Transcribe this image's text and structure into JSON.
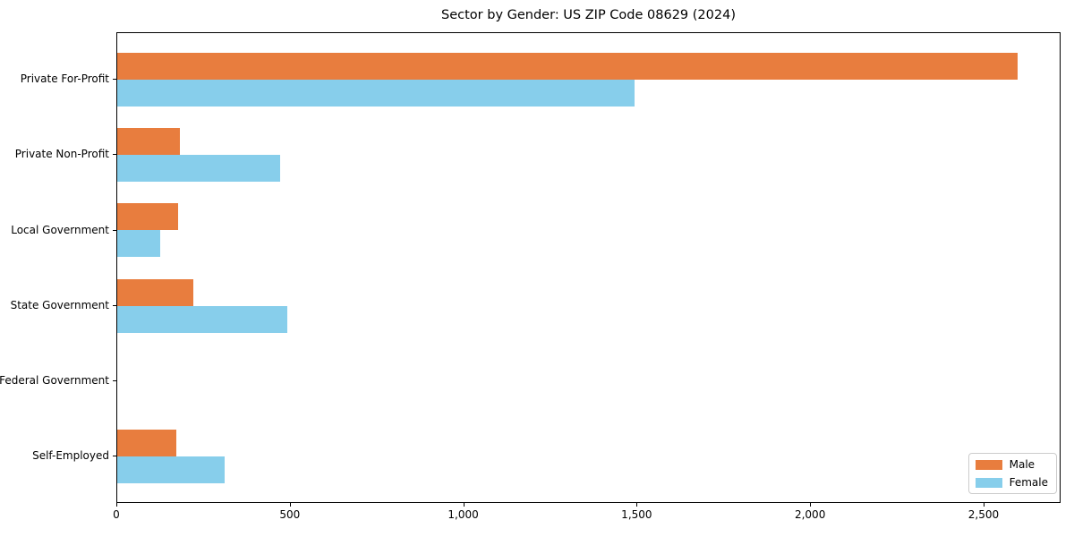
{
  "chart_data": {
    "type": "bar",
    "orientation": "horizontal",
    "title": "Sector by Gender: US ZIP Code 08629 (2024)",
    "categories": [
      "Private For-Profit",
      "Private Non-Profit",
      "Local Government",
      "State Government",
      "Federal Government",
      "Self-Employed"
    ],
    "series": [
      {
        "name": "Male",
        "color": "#e87d3e",
        "values": [
          2600,
          180,
          175,
          220,
          0,
          170
        ]
      },
      {
        "name": "Female",
        "color": "#87ceeb",
        "values": [
          1495,
          470,
          125,
          490,
          0,
          310
        ]
      }
    ],
    "xlabel": "",
    "ylabel": "",
    "xlim": [
      0,
      2722
    ],
    "xticks": [
      0,
      500,
      1000,
      1500,
      2000,
      2500
    ],
    "xtick_labels": [
      "0",
      "500",
      "1,000",
      "1,500",
      "2,000",
      "2,500"
    ],
    "grid": false,
    "legend": {
      "position": "lower right"
    }
  },
  "colors": {
    "spine": "#000000",
    "background": "#ffffff",
    "legend_border": "#cccccc"
  }
}
